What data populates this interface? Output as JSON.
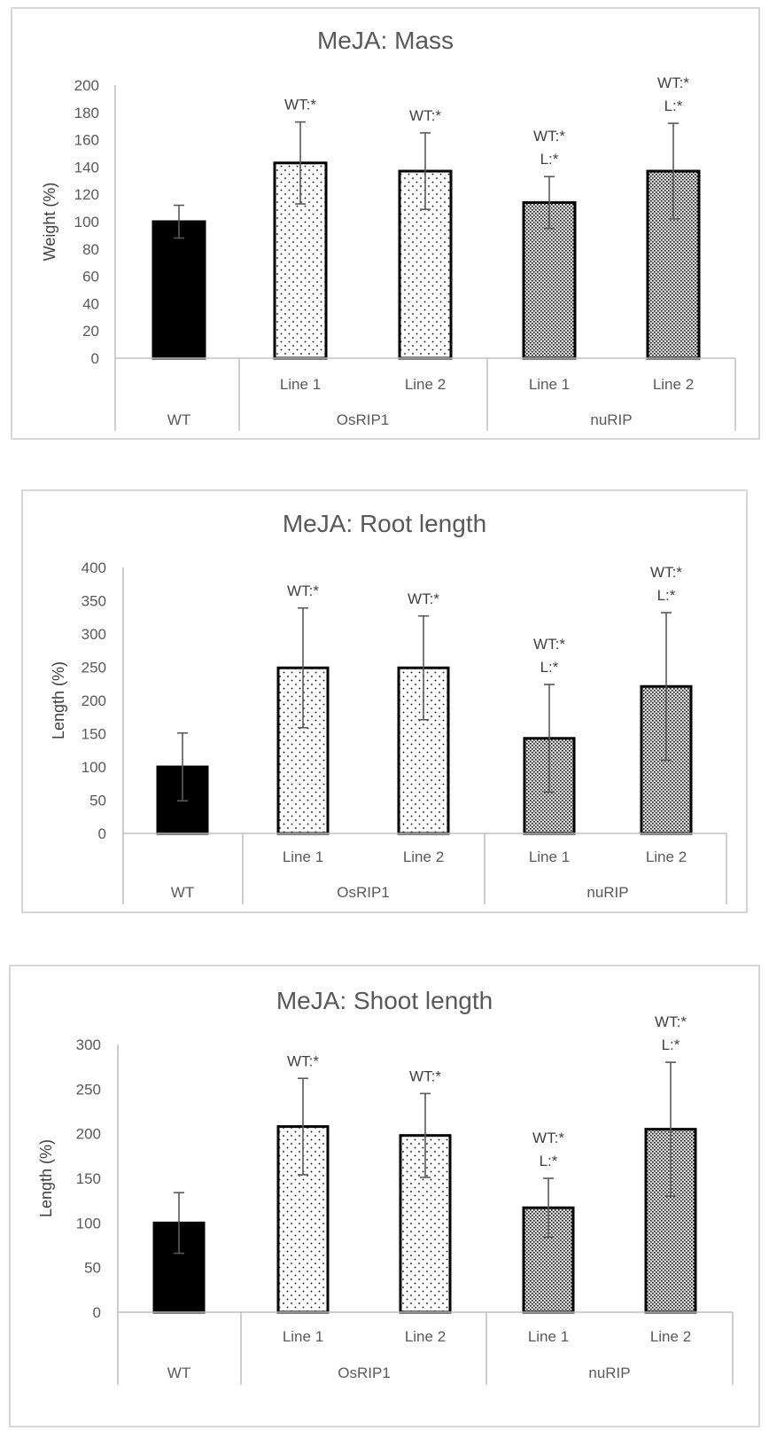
{
  "charts": [
    {
      "chart_data": {
        "type": "bar",
        "title": "MeJA: Mass",
        "ylabel": "Weight (%)",
        "ylim": [
          0,
          200
        ],
        "yticks": [
          "0",
          "20",
          "40",
          "60",
          "80",
          "100",
          "120",
          "140",
          "160",
          "180",
          "200"
        ],
        "groups": [
          "WT",
          "OsRIP1",
          "nuRIP"
        ],
        "categories": [
          "",
          "Line 1",
          "Line 2",
          "Line 1",
          "Line 2"
        ],
        "values": [
          100,
          143,
          137,
          114,
          137
        ],
        "error": [
          12,
          30,
          28,
          19,
          35
        ],
        "annotations": [
          [],
          [
            "WT:*"
          ],
          [
            "WT:*"
          ],
          [
            "WT:*",
            "L:*"
          ],
          [
            "WT:*",
            "L:*"
          ]
        ],
        "grid": false
      }
    },
    {
      "chart_data": {
        "type": "bar",
        "title": "MeJA: Root length",
        "ylabel": "Length (%)",
        "ylim": [
          0,
          400
        ],
        "yticks": [
          "0",
          "50",
          "100",
          "150",
          "200",
          "250",
          "300",
          "350",
          "400"
        ],
        "groups": [
          "WT",
          "OsRIP1",
          "nuRIP"
        ],
        "categories": [
          "",
          "Line 1",
          "Line 2",
          "Line 1",
          "Line 2"
        ],
        "values": [
          100,
          249,
          249,
          143,
          221
        ],
        "error": [
          51,
          90,
          78,
          81,
          111
        ],
        "annotations": [
          [],
          [
            "WT:*"
          ],
          [
            "WT:*"
          ],
          [
            "WT:*",
            "L:*"
          ],
          [
            "WT:*",
            "L:*"
          ]
        ],
        "grid": false
      }
    },
    {
      "chart_data": {
        "type": "bar",
        "title": "MeJA: Shoot length",
        "ylabel": "Length (%)",
        "ylim": [
          0,
          300
        ],
        "yticks": [
          "0",
          "50",
          "100",
          "150",
          "200",
          "250",
          "300"
        ],
        "groups": [
          "WT",
          "OsRIP1",
          "nuRIP"
        ],
        "categories": [
          "",
          "Line 1",
          "Line 2",
          "Line 1",
          "Line 2"
        ],
        "values": [
          100,
          208,
          198,
          117,
          205
        ],
        "error": [
          34,
          54,
          47,
          33,
          75
        ],
        "annotations": [
          [],
          [
            "WT:*"
          ],
          [
            "WT:*"
          ],
          [
            "WT:*",
            "L:*"
          ],
          [
            "WT:*",
            "L:*"
          ]
        ],
        "grid": false
      }
    }
  ],
  "colors": {
    "wt_fill": "#000000",
    "osrip1_fill": "#ffffff",
    "nurip_fill": "#d9d9d9",
    "bar_stroke": "#000000",
    "axis": "#bfbfbf",
    "error_bar": "#595959",
    "text": "#595959"
  }
}
